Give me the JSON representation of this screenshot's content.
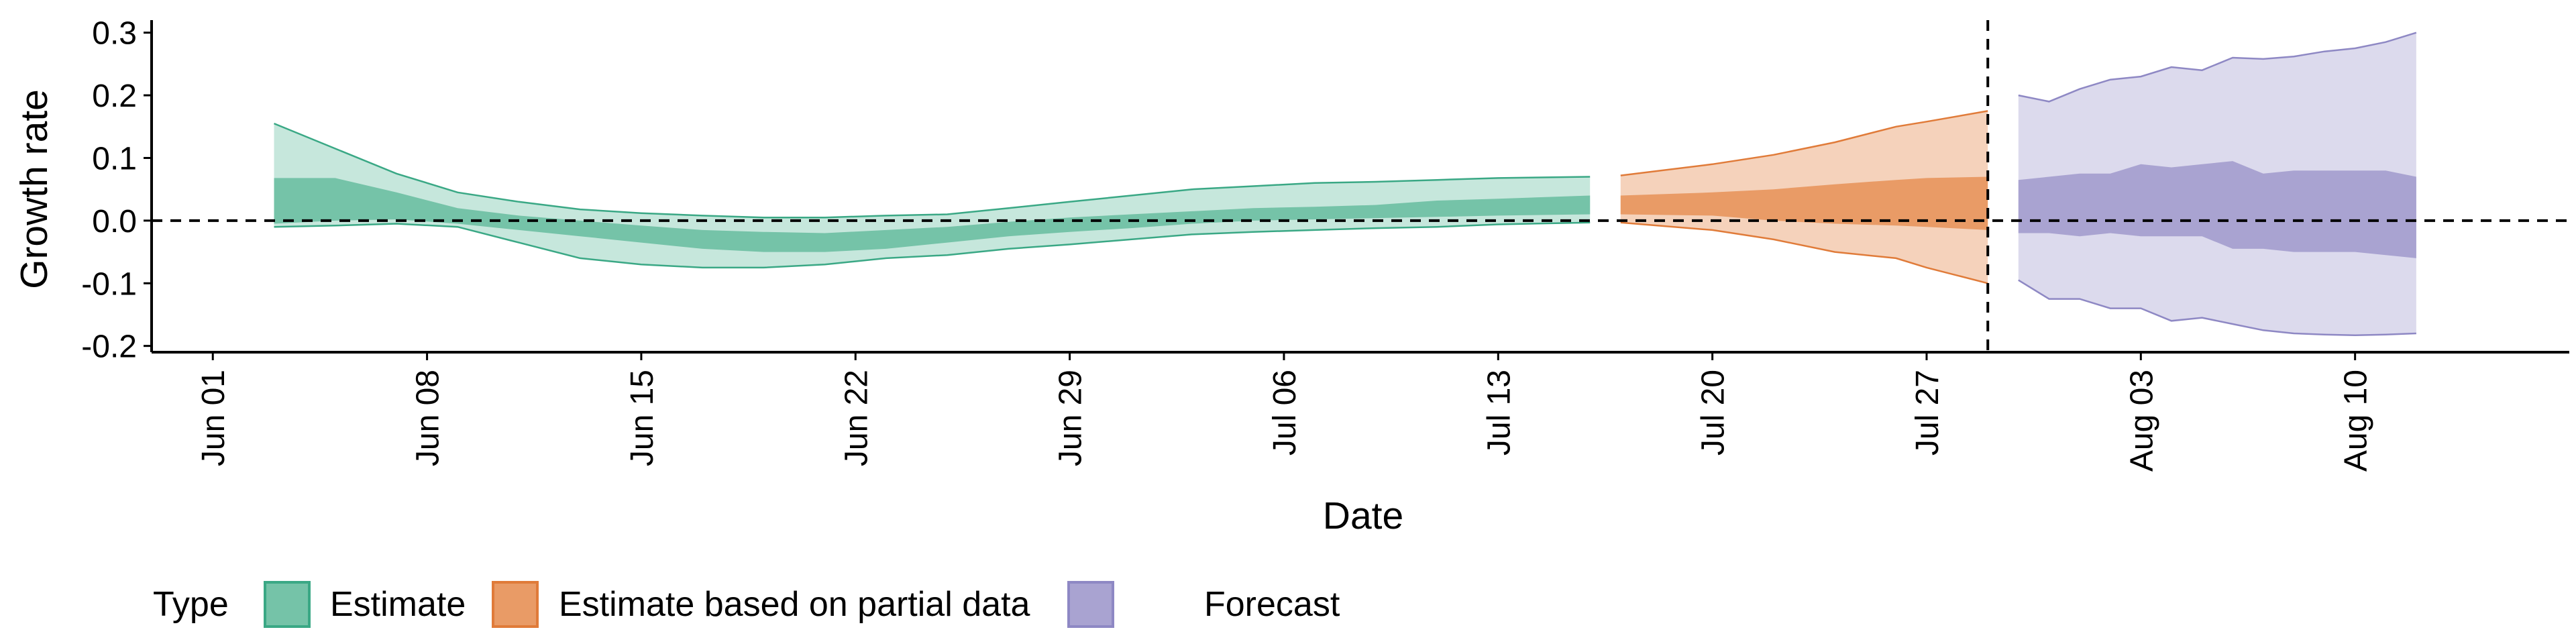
{
  "chart_data": {
    "type": "area",
    "xlabel": "Date",
    "ylabel": "Growth rate",
    "x_range": [
      "2020-05-30",
      "2020-08-17"
    ],
    "ylim": [
      -0.21,
      0.32
    ],
    "y_ticks": [
      -0.2,
      -0.1,
      0.0,
      0.1,
      0.2,
      0.3
    ],
    "y_tick_labels": [
      "-0.2",
      "-0.1",
      "0.0",
      "0.1",
      "0.2",
      "0.3"
    ],
    "x_ticks": [
      "2020-06-01",
      "2020-06-08",
      "2020-06-15",
      "2020-06-22",
      "2020-06-29",
      "2020-07-06",
      "2020-07-13",
      "2020-07-20",
      "2020-07-27",
      "2020-08-03",
      "2020-08-10"
    ],
    "x_tick_labels": [
      "Jun 01",
      "Jun 08",
      "Jun 15",
      "Jun 22",
      "Jun 29",
      "Jul 06",
      "Jul 13",
      "Jul 20",
      "Jul 27",
      "Aug 03",
      "Aug 10"
    ],
    "reference_lines": {
      "horizontal_y": 0.0,
      "vertical_x": "2020-07-29"
    },
    "grid": false,
    "legend": {
      "title": "Type",
      "position": "bottom-left",
      "entries": [
        "Estimate",
        "Estimate based on partial data",
        "Forecast"
      ]
    },
    "colors": {
      "Estimate": {
        "inner": "#75c3a8",
        "outer": "#c6e7dc",
        "line": "#3aa885"
      },
      "Estimate based on partial data": {
        "inner": "#e99b66",
        "outer": "#f5d2bb",
        "line": "#e07b39"
      },
      "Forecast": {
        "inner": "#a9a3d1",
        "outer": "#dcdaed",
        "line": "#8e88c4"
      }
    },
    "series": [
      {
        "name": "Estimate",
        "points": [
          {
            "x": "2020-06-03",
            "lo90": -0.01,
            "lo50": -0.005,
            "hi50": 0.068,
            "hi90": 0.155
          },
          {
            "x": "2020-06-05",
            "lo90": -0.008,
            "lo50": 0.0,
            "hi50": 0.068,
            "hi90": 0.115
          },
          {
            "x": "2020-06-07",
            "lo90": -0.005,
            "lo50": 0.002,
            "hi50": 0.045,
            "hi90": 0.075
          },
          {
            "x": "2020-06-09",
            "lo90": -0.01,
            "lo50": -0.005,
            "hi50": 0.02,
            "hi90": 0.045
          },
          {
            "x": "2020-06-11",
            "lo90": -0.035,
            "lo50": -0.015,
            "hi50": 0.008,
            "hi90": 0.03
          },
          {
            "x": "2020-06-13",
            "lo90": -0.06,
            "lo50": -0.025,
            "hi50": 0.0,
            "hi90": 0.018
          },
          {
            "x": "2020-06-15",
            "lo90": -0.07,
            "lo50": -0.035,
            "hi50": -0.008,
            "hi90": 0.012
          },
          {
            "x": "2020-06-17",
            "lo90": -0.075,
            "lo50": -0.045,
            "hi50": -0.015,
            "hi90": 0.008
          },
          {
            "x": "2020-06-19",
            "lo90": -0.075,
            "lo50": -0.05,
            "hi50": -0.018,
            "hi90": 0.005
          },
          {
            "x": "2020-06-21",
            "lo90": -0.07,
            "lo50": -0.05,
            "hi50": -0.02,
            "hi90": 0.005
          },
          {
            "x": "2020-06-23",
            "lo90": -0.06,
            "lo50": -0.045,
            "hi50": -0.015,
            "hi90": 0.008
          },
          {
            "x": "2020-06-25",
            "lo90": -0.055,
            "lo50": -0.035,
            "hi50": -0.01,
            "hi90": 0.01
          },
          {
            "x": "2020-06-27",
            "lo90": -0.045,
            "lo50": -0.025,
            "hi50": -0.002,
            "hi90": 0.02
          },
          {
            "x": "2020-06-29",
            "lo90": -0.038,
            "lo50": -0.018,
            "hi50": 0.005,
            "hi90": 0.03
          },
          {
            "x": "2020-07-01",
            "lo90": -0.03,
            "lo50": -0.012,
            "hi50": 0.01,
            "hi90": 0.04
          },
          {
            "x": "2020-07-03",
            "lo90": -0.022,
            "lo50": -0.005,
            "hi50": 0.015,
            "hi90": 0.05
          },
          {
            "x": "2020-07-05",
            "lo90": -0.018,
            "lo50": 0.0,
            "hi50": 0.02,
            "hi90": 0.055
          },
          {
            "x": "2020-07-07",
            "lo90": -0.015,
            "lo50": 0.002,
            "hi50": 0.022,
            "hi90": 0.06
          },
          {
            "x": "2020-07-09",
            "lo90": -0.012,
            "lo50": 0.004,
            "hi50": 0.025,
            "hi90": 0.062
          },
          {
            "x": "2020-07-11",
            "lo90": -0.01,
            "lo50": 0.006,
            "hi50": 0.032,
            "hi90": 0.065
          },
          {
            "x": "2020-07-13",
            "lo90": -0.006,
            "lo50": 0.008,
            "hi50": 0.035,
            "hi90": 0.068
          },
          {
            "x": "2020-07-16",
            "lo90": -0.003,
            "lo50": 0.01,
            "hi50": 0.04,
            "hi90": 0.07
          }
        ]
      },
      {
        "name": "Estimate based on partial data",
        "points": [
          {
            "x": "2020-07-17",
            "lo90": -0.003,
            "lo50": 0.01,
            "hi50": 0.04,
            "hi90": 0.072
          },
          {
            "x": "2020-07-20",
            "lo90": -0.015,
            "lo50": 0.008,
            "hi50": 0.045,
            "hi90": 0.09
          },
          {
            "x": "2020-07-22",
            "lo90": -0.03,
            "lo50": 0.0,
            "hi50": 0.05,
            "hi90": 0.105
          },
          {
            "x": "2020-07-24",
            "lo90": -0.05,
            "lo50": -0.005,
            "hi50": 0.058,
            "hi90": 0.125
          },
          {
            "x": "2020-07-26",
            "lo90": -0.06,
            "lo50": -0.008,
            "hi50": 0.065,
            "hi90": 0.15
          },
          {
            "x": "2020-07-27",
            "lo90": -0.075,
            "lo50": -0.01,
            "hi50": 0.068,
            "hi90": 0.158
          },
          {
            "x": "2020-07-29",
            "lo90": -0.1,
            "lo50": -0.015,
            "hi50": 0.07,
            "hi90": 0.175
          }
        ]
      },
      {
        "name": "Forecast",
        "points": [
          {
            "x": "2020-07-30",
            "lo90": -0.095,
            "lo50": -0.02,
            "hi50": 0.065,
            "hi90": 0.2
          },
          {
            "x": "2020-07-31",
            "lo90": -0.125,
            "lo50": -0.02,
            "hi50": 0.07,
            "hi90": 0.19
          },
          {
            "x": "2020-08-01",
            "lo90": -0.125,
            "lo50": -0.025,
            "hi50": 0.075,
            "hi90": 0.21
          },
          {
            "x": "2020-08-02",
            "lo90": -0.14,
            "lo50": -0.02,
            "hi50": 0.075,
            "hi90": 0.225
          },
          {
            "x": "2020-08-03",
            "lo90": -0.14,
            "lo50": -0.025,
            "hi50": 0.09,
            "hi90": 0.23
          },
          {
            "x": "2020-08-04",
            "lo90": -0.16,
            "lo50": -0.025,
            "hi50": 0.085,
            "hi90": 0.245
          },
          {
            "x": "2020-08-05",
            "lo90": -0.155,
            "lo50": -0.025,
            "hi50": 0.09,
            "hi90": 0.24
          },
          {
            "x": "2020-08-06",
            "lo90": -0.165,
            "lo50": -0.045,
            "hi50": 0.095,
            "hi90": 0.26
          },
          {
            "x": "2020-08-07",
            "lo90": -0.175,
            "lo50": -0.045,
            "hi50": 0.075,
            "hi90": 0.258
          },
          {
            "x": "2020-08-08",
            "lo90": -0.18,
            "lo50": -0.05,
            "hi50": 0.08,
            "hi90": 0.262
          },
          {
            "x": "2020-08-09",
            "lo90": -0.182,
            "lo50": -0.05,
            "hi50": 0.08,
            "hi90": 0.27
          },
          {
            "x": "2020-08-10",
            "lo90": -0.183,
            "lo50": -0.05,
            "hi50": 0.08,
            "hi90": 0.275
          },
          {
            "x": "2020-08-11",
            "lo90": -0.182,
            "lo50": -0.055,
            "hi50": 0.08,
            "hi90": 0.285
          },
          {
            "x": "2020-08-12",
            "lo90": -0.18,
            "lo50": -0.06,
            "hi50": 0.07,
            "hi90": 0.3
          }
        ]
      }
    ]
  }
}
